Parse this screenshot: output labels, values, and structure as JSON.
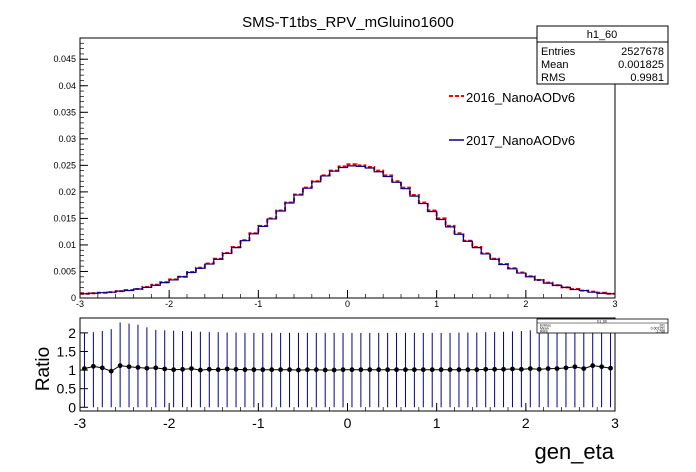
{
  "title": "SMS-T1tbs_RPV_mGluino1600",
  "stats_box": {
    "name": "h1_60",
    "rows": [
      {
        "label": "Entries",
        "value": "2527678"
      },
      {
        "label": "Mean",
        "value": "0.001825"
      },
      {
        "label": "RMS",
        "value": "0.9981"
      }
    ]
  },
  "stats_box_small": {
    "name": "h1_60",
    "rows": [
      {
        "label": "Entries",
        "value": "101"
      },
      {
        "label": "Mean",
        "value": "0.001151"
      },
      {
        "label": "RMS",
        "value": "1.768"
      }
    ]
  },
  "colors": {
    "series_2016": "#ff0000",
    "series_2017": "#00008b",
    "ratio": "#000000",
    "errorbar": "#00008b"
  },
  "chart_data": [
    {
      "type": "line",
      "subtype": "step-histogram",
      "title": "SMS-T1tbs_RPV_mGluino1600",
      "xlabel": "",
      "ylabel": "",
      "xlim": [
        -3,
        3
      ],
      "ylim": [
        0,
        0.049
      ],
      "x_ticks": [
        "-3",
        "-2",
        "-1",
        "0",
        "1",
        "2",
        "3"
      ],
      "y_ticks": [
        "0",
        "0.005",
        "0.01",
        "0.015",
        "0.02",
        "0.025",
        "0.03",
        "0.035",
        "0.04",
        "0.045"
      ],
      "legend": "right",
      "bins": 60,
      "x": [
        -2.95,
        -2.85,
        -2.75,
        -2.65,
        -2.55,
        -2.45,
        -2.35,
        -2.25,
        -2.15,
        -2.05,
        -1.95,
        -1.85,
        -1.75,
        -1.65,
        -1.55,
        -1.45,
        -1.35,
        -1.25,
        -1.15,
        -1.05,
        -0.95,
        -0.85,
        -0.75,
        -0.65,
        -0.55,
        -0.45,
        -0.35,
        -0.25,
        -0.15,
        -0.05,
        0.05,
        0.15,
        0.25,
        0.35,
        0.45,
        0.55,
        0.65,
        0.75,
        0.85,
        0.95,
        1.05,
        1.15,
        1.25,
        1.35,
        1.45,
        1.55,
        1.65,
        1.75,
        1.85,
        1.95,
        2.05,
        2.15,
        2.25,
        2.35,
        2.45,
        2.55,
        2.65,
        2.75,
        2.85,
        2.95
      ],
      "series": [
        {
          "name": "2016_NanoAODv6",
          "values": [
            0.0008,
            0.0009,
            0.001,
            0.0011,
            0.0013,
            0.0015,
            0.0017,
            0.0021,
            0.0025,
            0.003,
            0.0035,
            0.004,
            0.0049,
            0.0057,
            0.0065,
            0.0074,
            0.0085,
            0.0096,
            0.0109,
            0.0122,
            0.0136,
            0.015,
            0.0165,
            0.018,
            0.0195,
            0.0208,
            0.022,
            0.0231,
            0.024,
            0.0248,
            0.0252,
            0.025,
            0.0247,
            0.024,
            0.0231,
            0.022,
            0.0208,
            0.0194,
            0.018,
            0.0165,
            0.015,
            0.0136,
            0.0122,
            0.0108,
            0.0096,
            0.0084,
            0.0074,
            0.0064,
            0.0056,
            0.0048,
            0.0041,
            0.0034,
            0.0029,
            0.0024,
            0.002,
            0.0017,
            0.0014,
            0.0012,
            0.001,
            0.0008
          ]
        },
        {
          "name": "2017_NanoAODv6",
          "values": [
            0.0008,
            0.0009,
            0.001,
            0.0011,
            0.0013,
            0.0014,
            0.0017,
            0.002,
            0.0024,
            0.0029,
            0.0034,
            0.004,
            0.0048,
            0.0056,
            0.0064,
            0.0073,
            0.0084,
            0.0095,
            0.0108,
            0.0121,
            0.0135,
            0.0149,
            0.0164,
            0.0179,
            0.0194,
            0.0207,
            0.0219,
            0.023,
            0.0239,
            0.0246,
            0.0249,
            0.0248,
            0.0245,
            0.0238,
            0.0229,
            0.0218,
            0.0206,
            0.0192,
            0.0178,
            0.0163,
            0.0148,
            0.0134,
            0.012,
            0.0107,
            0.0095,
            0.0083,
            0.0073,
            0.0063,
            0.0055,
            0.0047,
            0.004,
            0.0034,
            0.0028,
            0.0024,
            0.002,
            0.0016,
            0.0014,
            0.0011,
            0.0009,
            0.0008
          ]
        }
      ]
    },
    {
      "type": "scatter",
      "subtype": "ratio-with-errorbars",
      "xlabel": "gen_eta",
      "ylabel": "Ratio",
      "xlim": [
        -3,
        3
      ],
      "ylim": [
        -0.1,
        2.4
      ],
      "x_ticks": [
        "-3",
        "-2",
        "-1",
        "0",
        "1",
        "2",
        "3"
      ],
      "y_ticks": [
        "0",
        "0.5",
        "1",
        "1.5",
        "2"
      ],
      "x": [
        -2.95,
        -2.85,
        -2.75,
        -2.65,
        -2.55,
        -2.45,
        -2.35,
        -2.25,
        -2.15,
        -2.05,
        -1.95,
        -1.85,
        -1.75,
        -1.65,
        -1.55,
        -1.45,
        -1.35,
        -1.25,
        -1.15,
        -1.05,
        -0.95,
        -0.85,
        -0.75,
        -0.65,
        -0.55,
        -0.45,
        -0.35,
        -0.25,
        -0.15,
        -0.05,
        0.05,
        0.15,
        0.25,
        0.35,
        0.45,
        0.55,
        0.65,
        0.75,
        0.85,
        0.95,
        1.05,
        1.15,
        1.25,
        1.35,
        1.45,
        1.55,
        1.65,
        1.75,
        1.85,
        1.95,
        2.05,
        2.15,
        2.25,
        2.35,
        2.45,
        2.55,
        2.65,
        2.75,
        2.85,
        2.95
      ],
      "values": [
        1.04,
        1.1,
        1.06,
        0.97,
        1.12,
        1.09,
        1.07,
        1.05,
        1.06,
        1.03,
        1.01,
        1.02,
        1.04,
        1.0,
        1.02,
        1.01,
        1.03,
        1.02,
        1.01,
        1.01,
        1.01,
        1.01,
        1.01,
        1.01,
        1.0,
        1.01,
        1.01,
        1.0,
        1.0,
        1.01,
        1.01,
        1.01,
        1.01,
        1.01,
        1.01,
        1.01,
        1.01,
        1.01,
        1.01,
        1.01,
        1.01,
        1.01,
        1.01,
        1.01,
        1.01,
        1.02,
        1.02,
        1.02,
        1.03,
        1.02,
        1.04,
        1.02,
        1.04,
        1.04,
        1.06,
        1.09,
        1.04,
        1.12,
        1.09,
        1.05
      ],
      "err_high": [
        2.0,
        2.02,
        2.05,
        2.1,
        2.28,
        2.25,
        2.22,
        2.15,
        2.08,
        2.07,
        2.06,
        2.05,
        2.04,
        2.03,
        2.02,
        2.02,
        2.01,
        2.01,
        2.0,
        2.0,
        2.0,
        2.0,
        2.0,
        2.0,
        2.0,
        2.0,
        2.0,
        2.0,
        2.0,
        2.0,
        2.0,
        2.0,
        2.0,
        2.0,
        2.0,
        2.0,
        2.0,
        2.0,
        2.0,
        2.0,
        2.0,
        2.0,
        2.01,
        2.01,
        2.01,
        2.02,
        2.02,
        2.03,
        2.04,
        2.05,
        2.07,
        2.08,
        2.1,
        2.12,
        2.14,
        2.18,
        2.2,
        2.22,
        2.25,
        2.28
      ],
      "err_low": [
        0,
        0,
        0,
        0,
        0,
        0,
        0,
        0,
        0,
        0,
        0,
        0,
        0,
        0,
        0,
        0,
        0,
        0,
        0,
        0,
        0,
        0,
        0,
        0,
        0,
        0,
        0,
        0,
        0,
        0,
        0,
        0,
        0,
        0,
        0,
        0,
        0,
        0,
        0,
        0,
        0,
        0,
        0,
        0,
        0,
        0,
        0,
        0,
        0,
        0,
        0,
        0,
        0,
        0,
        0,
        0,
        0,
        0,
        0,
        0
      ]
    }
  ]
}
